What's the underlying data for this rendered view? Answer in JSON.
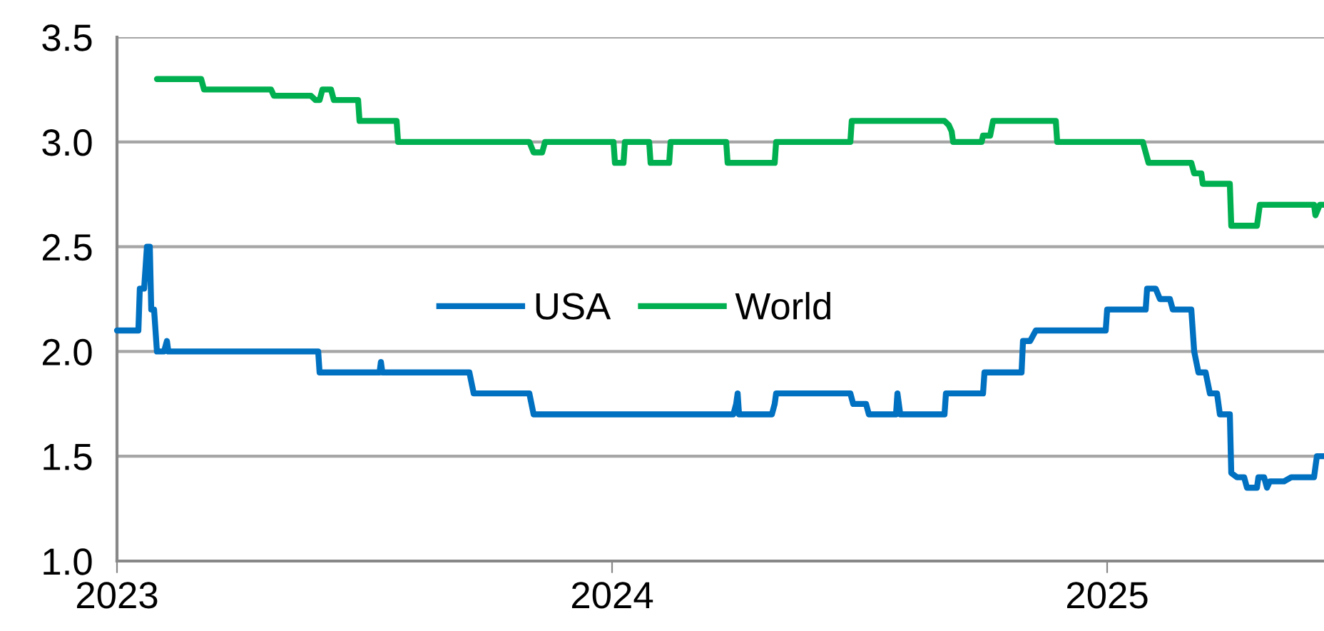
{
  "chart_data": {
    "type": "line",
    "xlim": [
      2023,
      2025.438
    ],
    "xticks": [
      2023,
      2024,
      2025
    ],
    "ylim": [
      1.0,
      3.5
    ],
    "yticks": [
      {
        "value": 1.0,
        "label": "1.0"
      },
      {
        "value": 1.5,
        "label": "1.5"
      },
      {
        "value": 2.0,
        "label": "2.0"
      },
      {
        "value": 2.5,
        "label": "2.5"
      },
      {
        "value": 3.0,
        "label": "3.0"
      },
      {
        "value": 3.5,
        "label": "3.5"
      }
    ],
    "grid": "y",
    "legend": "center",
    "line_style": "solid",
    "marker": "none",
    "series": [
      {
        "name": "USA",
        "color": "#0070c0",
        "x": [
          2023.0,
          2023.0432,
          2023.0461,
          2023.0548,
          2023.0605,
          2023.0663,
          2023.0692,
          2023.0749,
          2023.0807,
          2023.0951,
          2023.1009,
          2023.1037,
          2023.4064,
          2023.4092,
          2023.5303,
          2023.5331,
          2023.536,
          2023.7118,
          2023.7205,
          2023.8329,
          2023.8415,
          2024.245,
          2024.2507,
          2024.2536,
          2024.2565,
          2024.3228,
          2024.3285,
          2024.3314,
          2024.4813,
          2024.487,
          2024.513,
          2024.5187,
          2024.5735,
          2024.5764,
          2024.5821,
          2024.6715,
          2024.6744,
          2024.7493,
          2024.7522,
          2024.8271,
          2024.83,
          2024.8444,
          2024.8559,
          2024.9971,
          2025.0,
          2025.0778,
          2025.0807,
          2025.098,
          2025.1066,
          2025.1268,
          2025.1326,
          2025.17,
          2025.1758,
          2025.1844,
          2025.1989,
          2025.2075,
          2025.2219,
          2025.2277,
          2025.2478,
          2025.2507,
          2025.2622,
          2025.2767,
          2025.2824,
          2025.3026,
          2025.3055,
          2025.317,
          2025.3228,
          2025.3285,
          2025.3573,
          2025.3718,
          2025.4179,
          2025.4236,
          2025.438
        ],
        "values": [
          2.1,
          2.1,
          2.3,
          2.3,
          2.5,
          2.5,
          2.2,
          2.2,
          2.0,
          2.0,
          2.05,
          2.0,
          2.0,
          1.9,
          1.9,
          1.95,
          1.9,
          1.9,
          1.8,
          1.8,
          1.7,
          1.7,
          1.75,
          1.8,
          1.7,
          1.7,
          1.75,
          1.8,
          1.8,
          1.75,
          1.75,
          1.7,
          1.7,
          1.8,
          1.7,
          1.7,
          1.8,
          1.8,
          1.9,
          1.9,
          2.05,
          2.05,
          2.1,
          2.1,
          2.2,
          2.2,
          2.3,
          2.3,
          2.25,
          2.25,
          2.2,
          2.2,
          2.0,
          1.9,
          1.9,
          1.8,
          1.8,
          1.7,
          1.7,
          1.42,
          1.4,
          1.4,
          1.35,
          1.35,
          1.4,
          1.4,
          1.35,
          1.38,
          1.38,
          1.4,
          1.4,
          1.5,
          1.5
        ]
      },
      {
        "name": "World",
        "color": "#00b050",
        "x": [
          2023.0807,
          2023.17,
          2023.1758,
          2023.3112,
          2023.317,
          2023.3919,
          2023.4006,
          2023.4092,
          2023.415,
          2023.4323,
          2023.438,
          2023.487,
          2023.4899,
          2023.5648,
          2023.5677,
          2023.8329,
          2023.8415,
          2023.8588,
          2023.8646,
          2024.0029,
          2024.0058,
          2024.0231,
          2024.0259,
          2024.0749,
          2024.0778,
          2024.1153,
          2024.1182,
          2024.2305,
          2024.2334,
          2024.3285,
          2024.3314,
          2024.4813,
          2024.4841,
          2024.6715,
          2024.6801,
          2024.6859,
          2024.6888,
          2024.7464,
          2024.7493,
          2024.7637,
          2024.7695,
          2024.8963,
          2024.8991,
          2025.072,
          2025.0836,
          2025.17,
          2025.1758,
          2025.1902,
          2025.1931,
          2025.2478,
          2025.2507,
          2025.3026,
          2025.3084,
          2025.4179,
          2025.4207,
          2025.4294,
          2025.438
        ],
        "values": [
          3.3,
          3.3,
          3.25,
          3.25,
          3.22,
          3.22,
          3.2,
          3.2,
          3.25,
          3.25,
          3.2,
          3.2,
          3.1,
          3.1,
          3.0,
          3.0,
          2.95,
          2.95,
          3.0,
          3.0,
          2.9,
          2.9,
          3.0,
          3.0,
          2.9,
          2.9,
          3.0,
          3.0,
          2.9,
          2.9,
          3.0,
          3.0,
          3.1,
          3.1,
          3.08,
          3.05,
          3.0,
          3.0,
          3.03,
          3.03,
          3.1,
          3.1,
          3.0,
          3.0,
          2.9,
          2.9,
          2.85,
          2.85,
          2.8,
          2.8,
          2.6,
          2.6,
          2.7,
          2.7,
          2.65,
          2.7,
          2.7
        ]
      }
    ]
  }
}
